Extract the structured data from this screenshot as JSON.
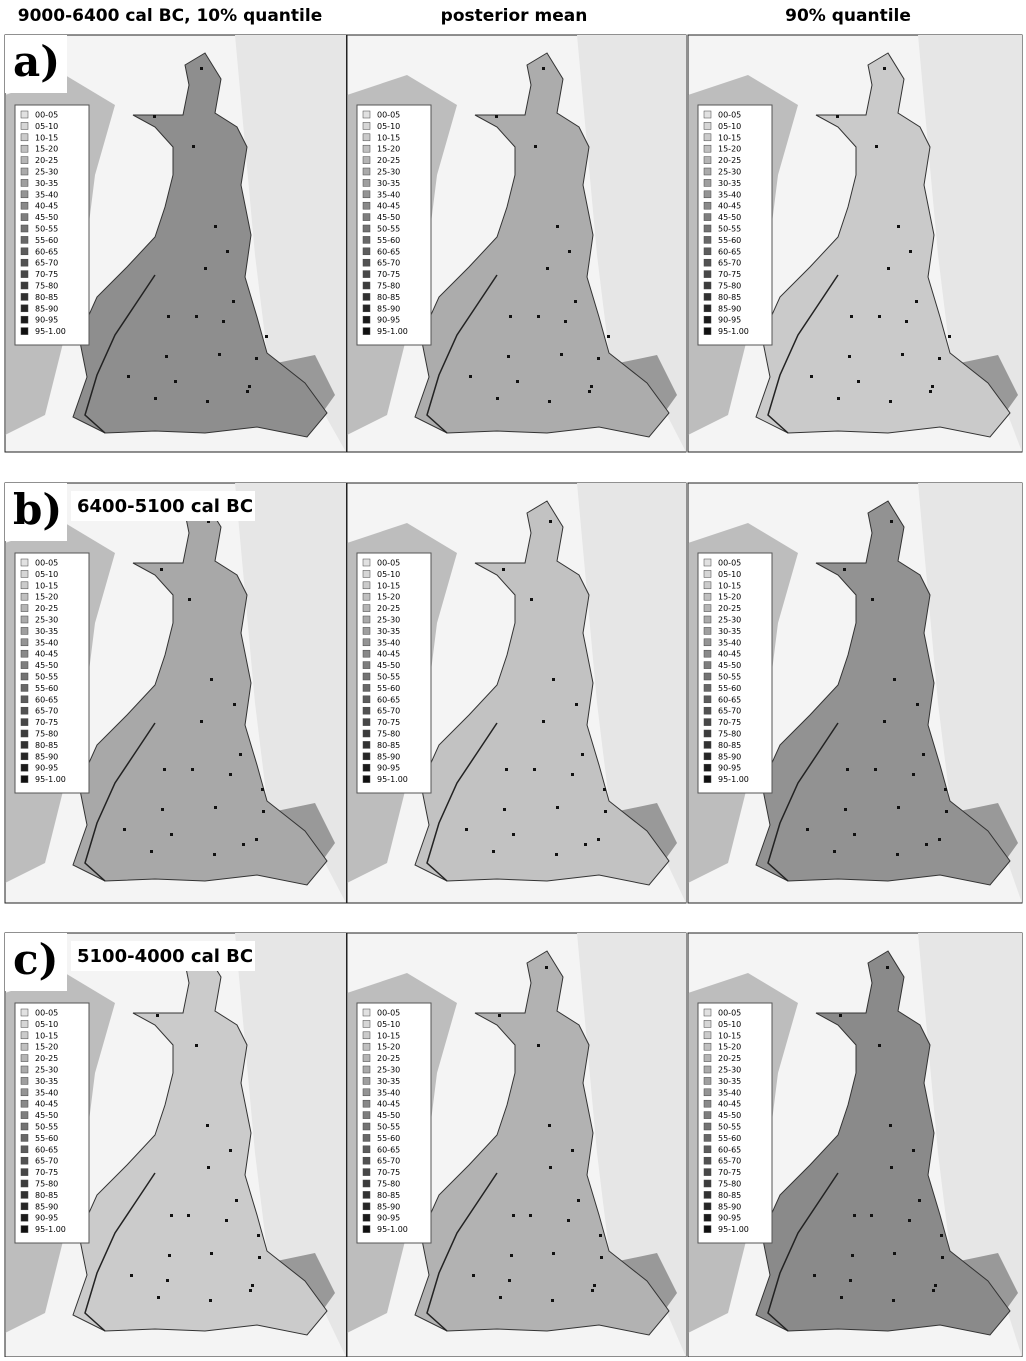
{
  "column_headers": [
    "9000-6400 cal BC, 10% quantile",
    "posterior mean",
    "90% quantile"
  ],
  "rows": [
    {
      "label": "a)"
    },
    {
      "label": "b)",
      "period": "6400-5100 cal BC"
    },
    {
      "label": "c)",
      "period": "5100-4000 cal BC"
    }
  ],
  "legend": [
    "00-05",
    "05-10",
    "10-15",
    "15-20",
    "20-25",
    "25-30",
    "30-35",
    "35-40",
    "40-45",
    "45-50",
    "50-55",
    "55-60",
    "60-65",
    "65-70",
    "70-75",
    "75-80",
    "80-85",
    "85-90",
    "90-95",
    "95-1.00"
  ]
}
